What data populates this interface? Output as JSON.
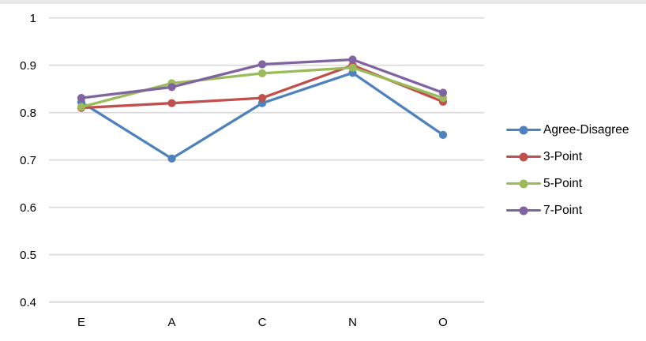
{
  "chart_data": {
    "type": "line",
    "title": "",
    "xlabel": "",
    "ylabel": "",
    "categories": [
      "E",
      "A",
      "C",
      "N",
      "O"
    ],
    "series": [
      {
        "name": "Agree-Disagree",
        "color": "#4F81BD",
        "values": [
          0.822,
          0.703,
          0.82,
          0.884,
          0.753
        ]
      },
      {
        "name": "3-Point",
        "color": "#C0504D",
        "values": [
          0.81,
          0.82,
          0.831,
          0.9,
          0.823
        ]
      },
      {
        "name": "5-Point",
        "color": "#9BBB59",
        "values": [
          0.812,
          0.862,
          0.883,
          0.895,
          0.831
        ]
      },
      {
        "name": "7-Point",
        "color": "#8064A2",
        "values": [
          0.831,
          0.854,
          0.902,
          0.912,
          0.842
        ]
      }
    ],
    "ylim": [
      0.4,
      1.0
    ],
    "ytick_step": 0.1,
    "ytick_labels": [
      "1",
      "0.9",
      "0.8",
      "0.7",
      "0.6",
      "0.5",
      "0.4"
    ],
    "grid": "horizontal",
    "gridline_color": "#D9D9D9",
    "marker": "circle",
    "legend_position": "right",
    "text_color": "#000000"
  }
}
